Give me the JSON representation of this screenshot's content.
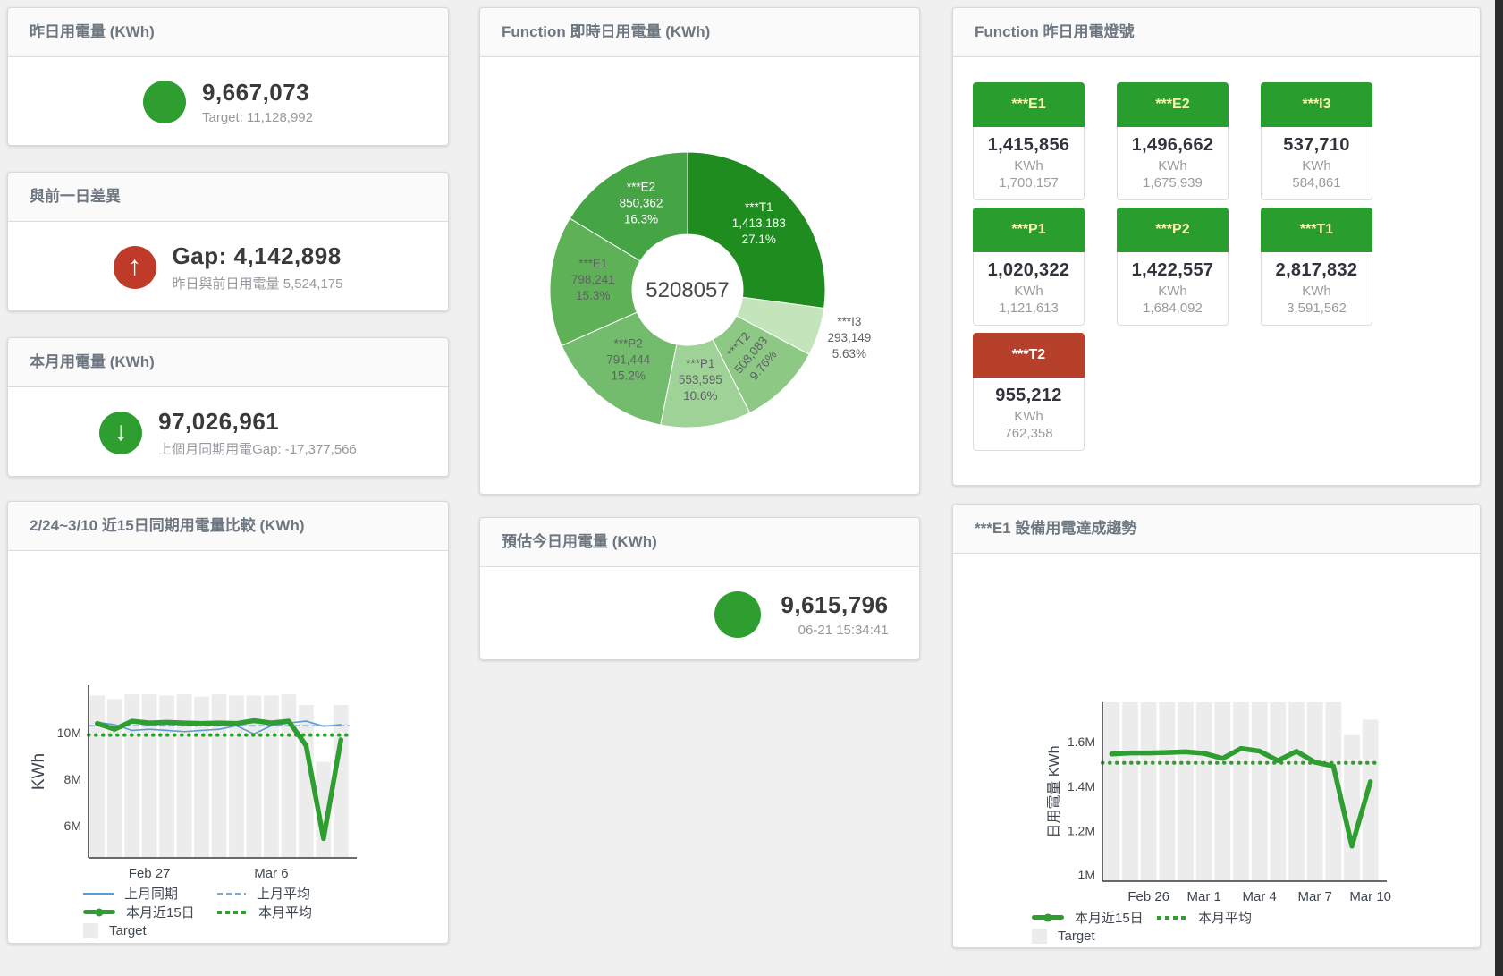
{
  "window": {
    "bg": "#f0f0f1",
    "scrollbar_color": "#2c2c2c"
  },
  "colors": {
    "green": "#2f9e31",
    "red": "#bf3a28",
    "blue": "#5b9bd5",
    "target_bar": "#ececec"
  },
  "cards": {
    "yesterday": {
      "title": "昨日用電量 (KWh)",
      "value": "9,667,073",
      "subtitle": "Target: 11,128,992"
    },
    "diff": {
      "title": "與前一日差異",
      "value": "Gap: 4,142,898",
      "subtitle": "昨日與前日用電量 5,524,175"
    },
    "month": {
      "title": "本月用電量 (KWh)",
      "value": "97,026,961",
      "subtitle": "上個月同期用電Gap: -17,377,566"
    },
    "estimate": {
      "title": "預估今日用電量 (KWh)",
      "value": "9,615,796",
      "subtitle": "06-21 15:34:41"
    },
    "realtime": {
      "title": "Function 即時日用電量 (KWh)"
    },
    "lights": {
      "title": "Function 昨日用電燈號",
      "tiles": [
        {
          "name": "***E1",
          "value": "1,415,856",
          "unit": "KWh",
          "target": "1,700,157",
          "status": "green"
        },
        {
          "name": "***E2",
          "value": "1,496,662",
          "unit": "KWh",
          "target": "1,675,939",
          "status": "green"
        },
        {
          "name": "***I3",
          "value": "537,710",
          "unit": "KWh",
          "target": "584,861",
          "status": "green"
        },
        {
          "name": "***P1",
          "value": "1,020,322",
          "unit": "KWh",
          "target": "1,121,613",
          "status": "green"
        },
        {
          "name": "***P2",
          "value": "1,422,557",
          "unit": "KWh",
          "target": "1,684,092",
          "status": "green"
        },
        {
          "name": "***T1",
          "value": "2,817,832",
          "unit": "KWh",
          "target": "3,591,562",
          "status": "green"
        },
        {
          "name": "***T2",
          "value": "955,212",
          "unit": "KWh",
          "target": "762,358",
          "status": "red"
        }
      ]
    },
    "compare": {
      "title": "2/24~3/10 近15日同期用電量比較 (KWh)"
    },
    "trend": {
      "title": "***E1 設備用電達成趨勢"
    }
  },
  "legend_defs": {
    "上月同期": {
      "swatch": "line",
      "color": "#5b9bd5"
    },
    "上月平均": {
      "swatch": "dashed",
      "color": "#77abdb"
    },
    "本月近15日": {
      "swatch": "thick",
      "color": "#2f9e31"
    },
    "本月平均": {
      "swatch": "dotted",
      "color": "#2f9e31"
    },
    "Target": {
      "swatch": "square",
      "color": "#ececec"
    }
  },
  "chart_data": [
    {
      "id": "realtime_donut",
      "type": "pie",
      "title": "Function 即時日用電量 (KWh)",
      "center_total": "5208057",
      "slices": [
        {
          "name": "***T1",
          "value": 1413183,
          "value_label": "1,413,183",
          "pct_label": "27.1%",
          "share": 27.1,
          "color": "#1f8c1f",
          "label_color": "#ffffff"
        },
        {
          "name": "***I3",
          "value": 293149,
          "value_label": "293,149",
          "pct_label": "5.63%",
          "share": 5.63,
          "color": "#c4e4bc",
          "label_color": "#5f6265",
          "label_outside": true
        },
        {
          "name": "***T2",
          "value": 508083,
          "value_label": "508,083",
          "pct_label": "9.76%",
          "share": 9.76,
          "color": "#8dc985",
          "label_color": "#5f6265",
          "label_rotate": -50
        },
        {
          "name": "***P1",
          "value": 553595,
          "value_label": "553,595",
          "pct_label": "10.6%",
          "share": 10.6,
          "color": "#9fd296",
          "label_color": "#5f6265"
        },
        {
          "name": "***P2",
          "value": 791444,
          "value_label": "791,444",
          "pct_label": "15.2%",
          "share": 15.2,
          "color": "#74bc6d",
          "label_color": "#5f6265"
        },
        {
          "name": "***E1",
          "value": 798241,
          "value_label": "798,241",
          "pct_label": "15.3%",
          "share": 15.3,
          "color": "#5eb157",
          "label_color": "#5f6265"
        },
        {
          "name": "***E2",
          "value": 850362,
          "value_label": "850,362",
          "pct_label": "16.3%",
          "share": 16.3,
          "color": "#45a545",
          "label_color": "#ffffff"
        }
      ]
    },
    {
      "id": "compare_15d",
      "type": "bar+line",
      "title": "2/24~3/10 近15日同期用電量比較 (KWh)",
      "ylabel": "KWh",
      "ylim": [
        4.62,
        12.04
      ],
      "yticks": [
        {
          "v": 6,
          "label": "6M"
        },
        {
          "v": 8,
          "label": "8M"
        },
        {
          "v": 10,
          "label": "10M"
        }
      ],
      "xticks": [
        {
          "i": 3,
          "label": "Feb 27"
        },
        {
          "i": 10,
          "label": "Mar 6"
        }
      ],
      "bars": {
        "name": "Target",
        "color": "#ececec",
        "values": [
          11.6,
          11.45,
          11.65,
          11.65,
          11.6,
          11.65,
          11.55,
          11.65,
          11.6,
          11.6,
          11.6,
          11.65,
          11.2,
          8.75,
          11.2
        ]
      },
      "series": [
        {
          "name": "上月同期",
          "color": "#5b9bd5",
          "style": "solid",
          "width": 1.6,
          "values": [
            10.45,
            10.35,
            10.1,
            10.15,
            10.1,
            10.05,
            10.1,
            10.15,
            10.3,
            9.95,
            10.3,
            10.42,
            10.5,
            10.28,
            10.35
          ]
        },
        {
          "name": "上月平均",
          "color": "#77abdb",
          "style": "dashed",
          "width": 1.8,
          "const": 10.3
        },
        {
          "name": "本月近15日",
          "color": "#2f9e31",
          "style": "solid",
          "width": 5.5,
          "values": [
            10.4,
            10.15,
            10.5,
            10.42,
            10.45,
            10.42,
            10.4,
            10.42,
            10.4,
            10.52,
            10.42,
            10.5,
            9.45,
            5.45,
            9.7
          ]
        },
        {
          "name": "本月平均",
          "color": "#2f9e31",
          "style": "dotted",
          "width": 4,
          "const": 9.9
        }
      ],
      "legend": [
        [
          "上月同期",
          "上月平均"
        ],
        [
          "本月近15日",
          "本月平均"
        ],
        [
          "Target"
        ]
      ]
    },
    {
      "id": "e1_trend",
      "type": "bar+line",
      "title": "***E1 設備用電達成趨勢",
      "ylabel": "日用電量 KWh",
      "ylim": [
        0.972,
        1.778
      ],
      "yticks": [
        {
          "v": 1,
          "label": "1M"
        },
        {
          "v": 1.2,
          "label": "1.2M"
        },
        {
          "v": 1.4,
          "label": "1.4M"
        },
        {
          "v": 1.6,
          "label": "1.6M"
        }
      ],
      "xticks": [
        {
          "i": 2,
          "label": "Feb 26"
        },
        {
          "i": 5,
          "label": "Mar 1"
        },
        {
          "i": 8,
          "label": "Mar 4"
        },
        {
          "i": 11,
          "label": "Mar 7"
        },
        {
          "i": 14,
          "label": "Mar 10"
        }
      ],
      "bars": {
        "name": "Target",
        "color": "#ececec",
        "values": [
          1.78,
          1.78,
          1.78,
          1.78,
          1.78,
          1.78,
          1.78,
          1.78,
          1.78,
          1.78,
          1.78,
          1.78,
          1.78,
          1.63,
          1.7
        ]
      },
      "series": [
        {
          "name": "本月近15日",
          "color": "#2f9e31",
          "style": "solid",
          "width": 5.5,
          "values": [
            1.545,
            1.55,
            1.55,
            1.552,
            1.555,
            1.548,
            1.525,
            1.57,
            1.558,
            1.515,
            1.557,
            1.508,
            1.49,
            1.13,
            1.42
          ]
        },
        {
          "name": "本月平均",
          "color": "#2f9e31",
          "style": "dotted",
          "width": 4,
          "const": 1.505
        }
      ],
      "legend": [
        [
          "本月近15日",
          "本月平均"
        ],
        [
          "Target"
        ]
      ]
    }
  ]
}
